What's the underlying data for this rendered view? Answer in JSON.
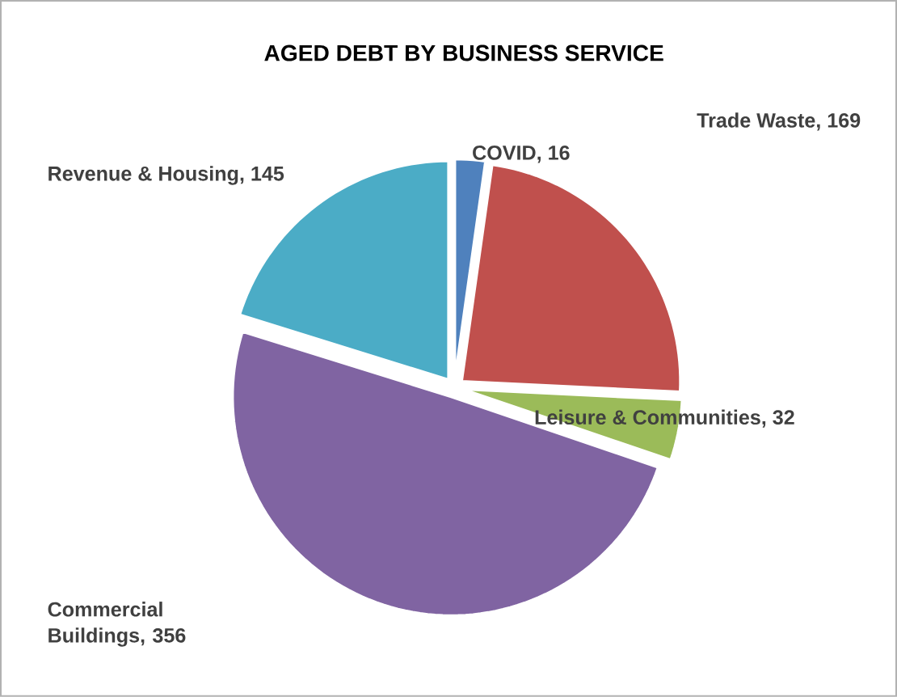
{
  "chart_data": {
    "type": "pie",
    "title": "AGED DEBT BY BUSINESS SERVICE",
    "categories": [
      "COVID",
      "Trade Waste",
      "Leisure & Communities",
      "Commercial Buildings",
      "Revenue & Housing"
    ],
    "values": [
      16,
      169,
      32,
      356,
      145
    ],
    "value_labels": [
      ", 16",
      ", 169",
      ", 32",
      ", 356",
      ", 145"
    ],
    "colors": [
      "#4f81bd",
      "#c0504d",
      "#9bbb59",
      "#8064a2",
      "#4bacc6"
    ]
  }
}
